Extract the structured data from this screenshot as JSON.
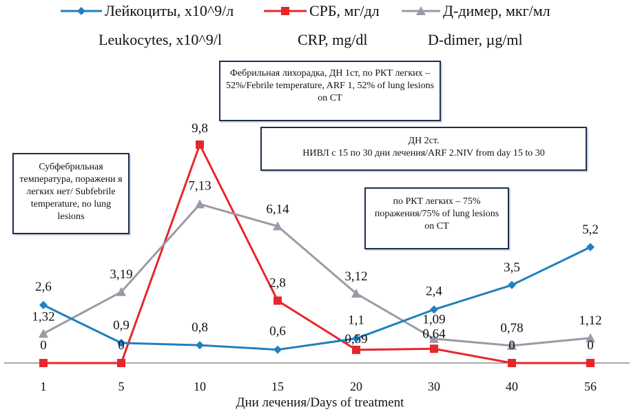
{
  "legend": {
    "items": [
      {
        "label": "Лейкоциты, x10^9/л",
        "color": "#1f7fc0",
        "marker": "diamond"
      },
      {
        "label": "СРБ, мг/дл",
        "color": "#e8262a",
        "marker": "square"
      },
      {
        "label": "Д-димер, мкг/мл",
        "color": "#9a9aa8",
        "marker": "triangle"
      }
    ],
    "english": [
      "Leukocytes, x10^9/l",
      "CRP, mg/dl",
      "D-dimer, µg/ml"
    ]
  },
  "annotations": {
    "febrile": "Фебрильная лихорадка, ДН 1ст, по РКТ легких – 52%/Febrile temperature, ARF 1, 52% of lung lesions on CT",
    "subfebrile": "Субфебрильная температура, поражени я легких нет/ Subfebrile temperature, no lung lesions",
    "arf2_line1": "ДН 2ст.",
    "arf2_line2": "НИВЛ с 15 по 30 дни лечения/ARF 2.NIV from  day 15 to 30",
    "ct75": "по РКТ легких – 75% поражения/75% of lung lesions on CT"
  },
  "chart_data": {
    "type": "line",
    "categories": [
      "1",
      "5",
      "10",
      "15",
      "20",
      "30",
      "40",
      "56"
    ],
    "xlabel": "Дни лечения/Days of treatment",
    "ylabel": "",
    "ylim": [
      0,
      11
    ],
    "grid": false,
    "series": [
      {
        "name": "Лейкоциты, x10^9/л",
        "color": "#1f7fc0",
        "marker": "diamond",
        "values": [
          2.6,
          0.9,
          0.8,
          0.6,
          1.1,
          2.4,
          3.5,
          5.2
        ],
        "labels": [
          "2,6",
          "0,9",
          "0,8",
          "0,6",
          "1,1",
          "2,4",
          "3,5",
          "5,2"
        ]
      },
      {
        "name": "СРБ, мг/дл",
        "color": "#e8262a",
        "marker": "square",
        "values": [
          0,
          0,
          9.8,
          2.8,
          0.59,
          0.64,
          0,
          0
        ],
        "labels": [
          "0",
          "0",
          "9,8",
          "2,8",
          "0,59",
          "0,64",
          "0",
          "0"
        ]
      },
      {
        "name": "Д-димер, мкг/мл",
        "color": "#9a9aa8",
        "marker": "triangle",
        "values": [
          1.32,
          3.19,
          7.13,
          6.14,
          3.12,
          1.09,
          0.78,
          1.12
        ],
        "labels": [
          "1,32",
          "3,19",
          "7,13",
          "6,14",
          "3,12",
          "1,09",
          "0,78",
          "1,12"
        ]
      }
    ]
  }
}
